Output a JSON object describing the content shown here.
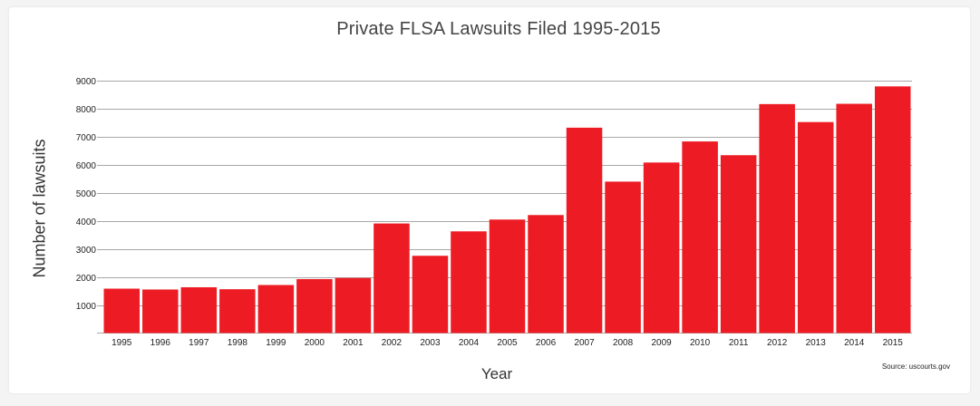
{
  "chart_data": {
    "type": "bar",
    "title": "Private FLSA Lawsuits Filed 1995-2015",
    "xlabel": "Year",
    "ylabel": "Number of lawsuits",
    "source": "Source: uscourts.gov",
    "categories": [
      "1995",
      "1996",
      "1997",
      "1998",
      "1999",
      "2000",
      "2001",
      "2002",
      "2003",
      "2004",
      "2005",
      "2006",
      "2007",
      "2008",
      "2009",
      "2010",
      "2011",
      "2012",
      "2013",
      "2014",
      "2015"
    ],
    "values": [
      1580,
      1550,
      1630,
      1560,
      1710,
      1920,
      1960,
      3900,
      2750,
      3620,
      4040,
      4200,
      7310,
      5390,
      6070,
      6820,
      6330,
      8150,
      7510,
      8160,
      8780
    ],
    "yticks": [
      1000,
      2000,
      3000,
      4000,
      5000,
      6000,
      7000,
      8000,
      9000
    ],
    "ylim": [
      0,
      9000
    ],
    "grid": true,
    "bar_color": "#ed1c24"
  }
}
